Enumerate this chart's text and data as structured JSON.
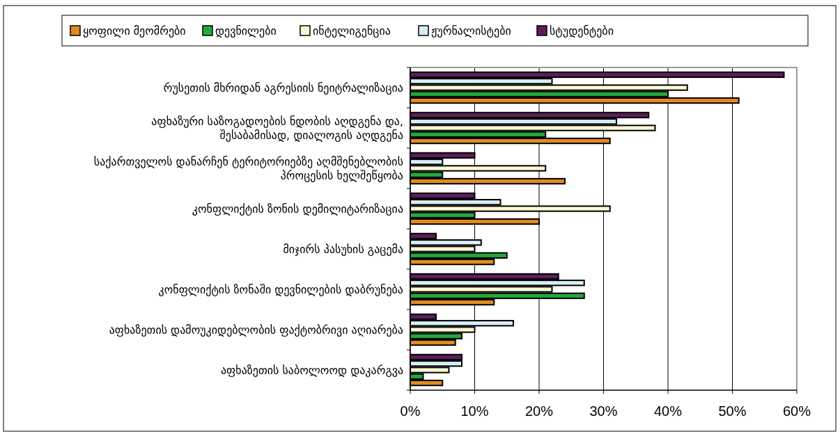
{
  "chart_data": {
    "type": "bar",
    "orientation": "horizontal",
    "categories": [
      "რუსეთის მხრიდან აგრესიის ნეიტრალიზაცია",
      "აფხაზური საზოგადოების ნდობის აღდგენა და, შესაბამისად, დიალოგის აღდგენა",
      "საქართველოს დანარჩენ ტერიტორიებზე აღმშენებლობის პროცესის ხელშეწყობა",
      "კონფლიქტის ზონის დემილიტარიზაცია",
      "მიჯირს პასუხის გაცემა",
      "კონფლიქტის ზონაში დევნილების დაბრუნება",
      "აფხაზეთის დამოუკიდებლობის ფაქტობრივი აღიარება",
      "აფხაზეთის საბოლოოდ დაკარგვა"
    ],
    "series": [
      {
        "name": "ყოფილი მეომრები",
        "color": "#e08a1e",
        "values": [
          51,
          31,
          24,
          20,
          13,
          13,
          7,
          5
        ]
      },
      {
        "name": "დევნილები",
        "color": "#22a83e",
        "values": [
          40,
          21,
          5,
          10,
          15,
          27,
          8,
          2
        ]
      },
      {
        "name": "ინტელიგენცია",
        "color": "#fdf8d2",
        "values": [
          43,
          38,
          21,
          31,
          10,
          22,
          10,
          6
        ]
      },
      {
        "name": "ჟურნალისტები",
        "color": "#d6eef8",
        "values": [
          22,
          32,
          5,
          14,
          11,
          27,
          16,
          8
        ]
      },
      {
        "name": "სტუდენტები",
        "color": "#5e1c5c",
        "values": [
          58,
          37,
          10,
          10,
          4,
          23,
          4,
          8
        ]
      }
    ],
    "xlim": [
      0,
      60
    ],
    "xticks": [
      {
        "value": 0,
        "label": "0%"
      },
      {
        "value": 10,
        "label": "10%"
      },
      {
        "value": 20,
        "label": "20%"
      },
      {
        "value": 30,
        "label": "30%"
      },
      {
        "value": 40,
        "label": "40%"
      },
      {
        "value": 50,
        "label": "50%"
      },
      {
        "value": 60,
        "label": "60%"
      }
    ],
    "grid": "x",
    "legend": "top"
  }
}
